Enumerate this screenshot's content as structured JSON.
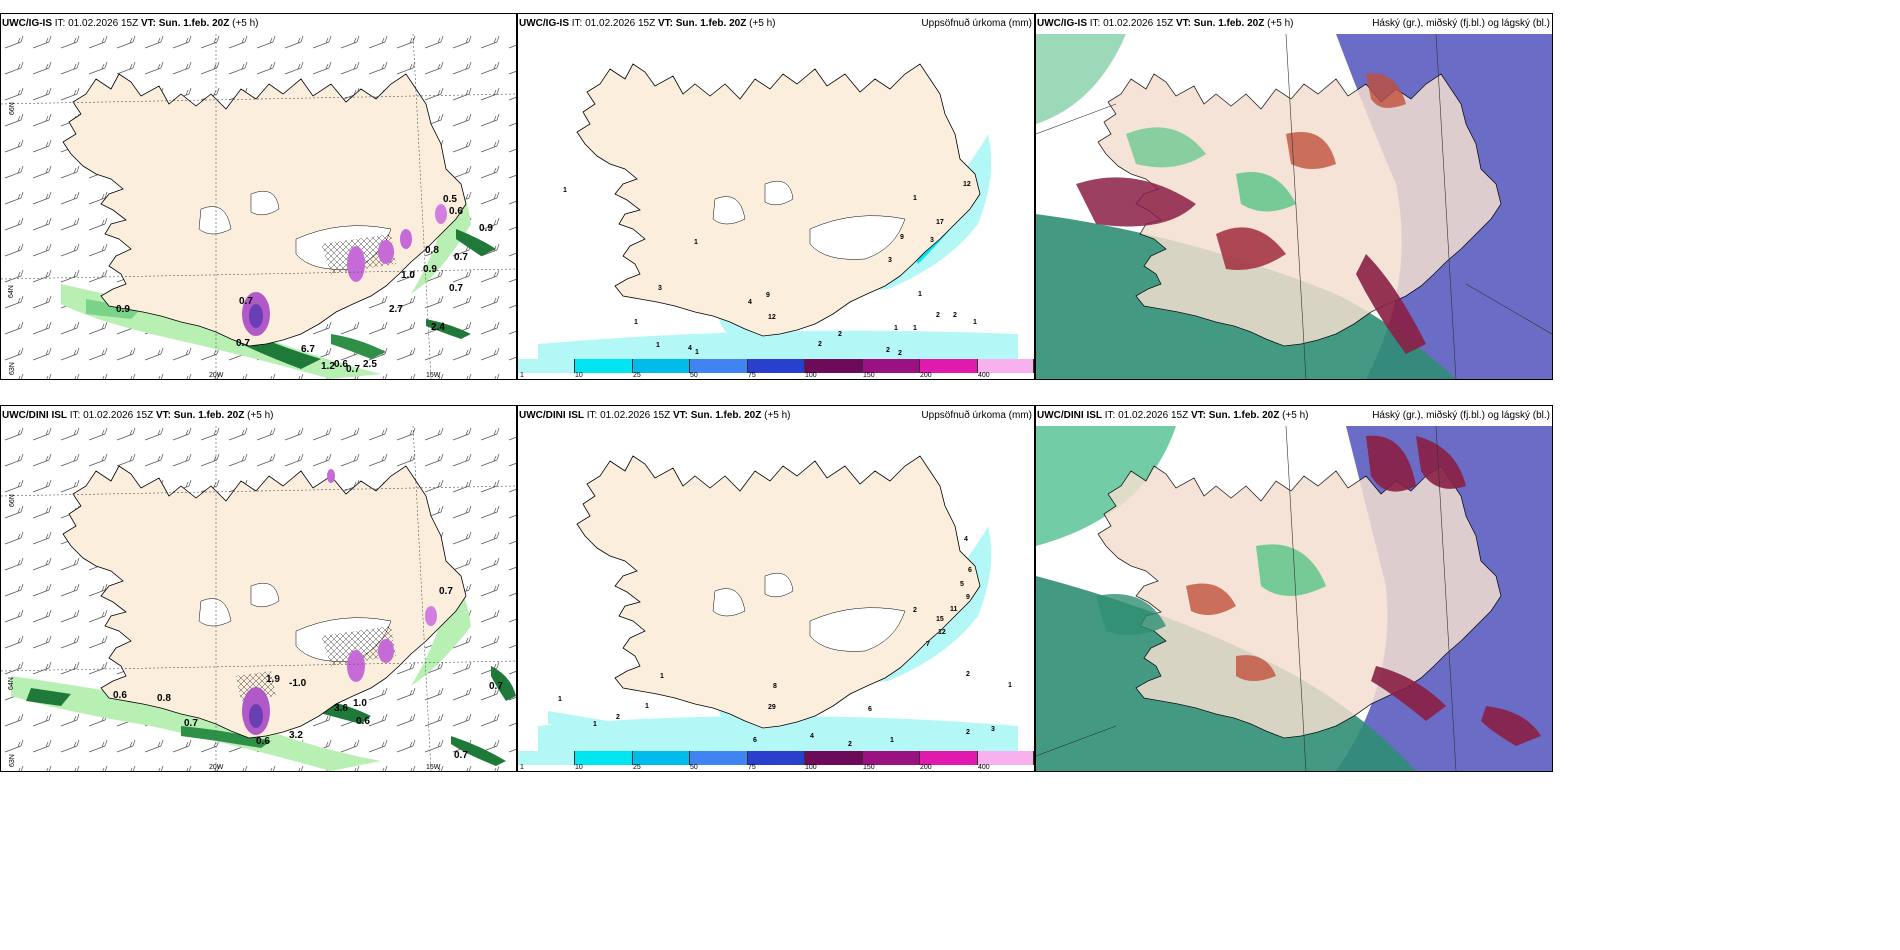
{
  "panels": [
    {
      "model": "UWC/IG-IS",
      "it_label": "IT: 01.02.2026 15Z",
      "vt_label": "VT: Sun. 1.feb. 20Z",
      "lead": "(+5 h)",
      "right_title": ""
    },
    {
      "model": "UWC/IG-IS",
      "it_label": "IT: 01.02.2026 15Z",
      "vt_label": "VT: Sun. 1.feb. 20Z",
      "lead": "(+5 h)",
      "right_title": "Uppsöfnuð úrkoma (mm)"
    },
    {
      "model": "UWC/IG-IS",
      "it_label": "IT: 01.02.2026 15Z",
      "vt_label": "VT: Sun. 1.feb. 20Z",
      "lead": "(+5 h)",
      "right_title": "Háský (gr.), miðský (fj.bl.) og lágský (bl.)"
    },
    {
      "model": "UWC/DINI ISL",
      "it_label": "IT: 01.02.2026 15Z",
      "vt_label": "VT: Sun. 1.feb. 20Z",
      "lead": "(+5 h)",
      "right_title": ""
    },
    {
      "model": "UWC/DINI ISL",
      "it_label": "IT: 01.02.2026 15Z",
      "vt_label": "VT: Sun. 1.feb. 20Z",
      "lead": "(+5 h)",
      "right_title": "Uppsöfnuð úrkoma (mm)"
    },
    {
      "model": "UWC/DINI ISL",
      "it_label": "IT: 01.02.2026 15Z",
      "vt_label": "VT: Sun. 1.feb. 20Z",
      "lead": "(+5 h)",
      "right_title": "Háský (gr.), miðský (fj.bl.) og lágský (bl.)"
    }
  ],
  "grid_labels": {
    "lat66": "66N",
    "lat64": "64N",
    "lat63": "63N",
    "lon20": "20W",
    "lon15": "15W"
  },
  "colorbar": {
    "ticks": [
      "1",
      "10",
      "25",
      "50",
      "75",
      "100",
      "150",
      "200",
      "400"
    ],
    "colors": [
      "#b4f7f7",
      "#00e5ef",
      "#00bcea",
      "#3f84f0",
      "#2a3fcc",
      "#6e0a5a",
      "#9a1282",
      "#e01aae",
      "#f7b1ef"
    ]
  },
  "wind_values_top": [
    "0.9",
    "0.7",
    "0.7",
    "6.7",
    "1.2",
    "0.6",
    "0.7",
    "2.5",
    "2.7",
    "2.4",
    "0.9",
    "0.7",
    "0.8",
    "1.0",
    "0.9",
    "0.7",
    "0.5",
    "0.6"
  ],
  "wind_values_bottom": [
    "0.6",
    "0.8",
    "0.7",
    "0.6",
    "3.2",
    "1.9",
    "-1.0",
    "3.6",
    "1.0",
    "0.6",
    "0.7",
    "0.7",
    "0.7"
  ],
  "precip_values_top": [
    "1",
    "1",
    "3",
    "1",
    "1",
    "4",
    "9",
    "12",
    "4",
    "2",
    "2",
    "1",
    "2",
    "2",
    "1",
    "1",
    "2",
    "2",
    "17",
    "12",
    "3",
    "1",
    "9",
    "3",
    "1",
    "1"
  ],
  "precip_values_bottom": [
    "1",
    "1",
    "2",
    "1",
    "1",
    "6",
    "4",
    "29",
    "8",
    "6",
    "2",
    "2",
    "1",
    "2",
    "3",
    "1",
    "4",
    "6",
    "5",
    "9",
    "11",
    "15",
    "12",
    "7",
    "2"
  ]
}
